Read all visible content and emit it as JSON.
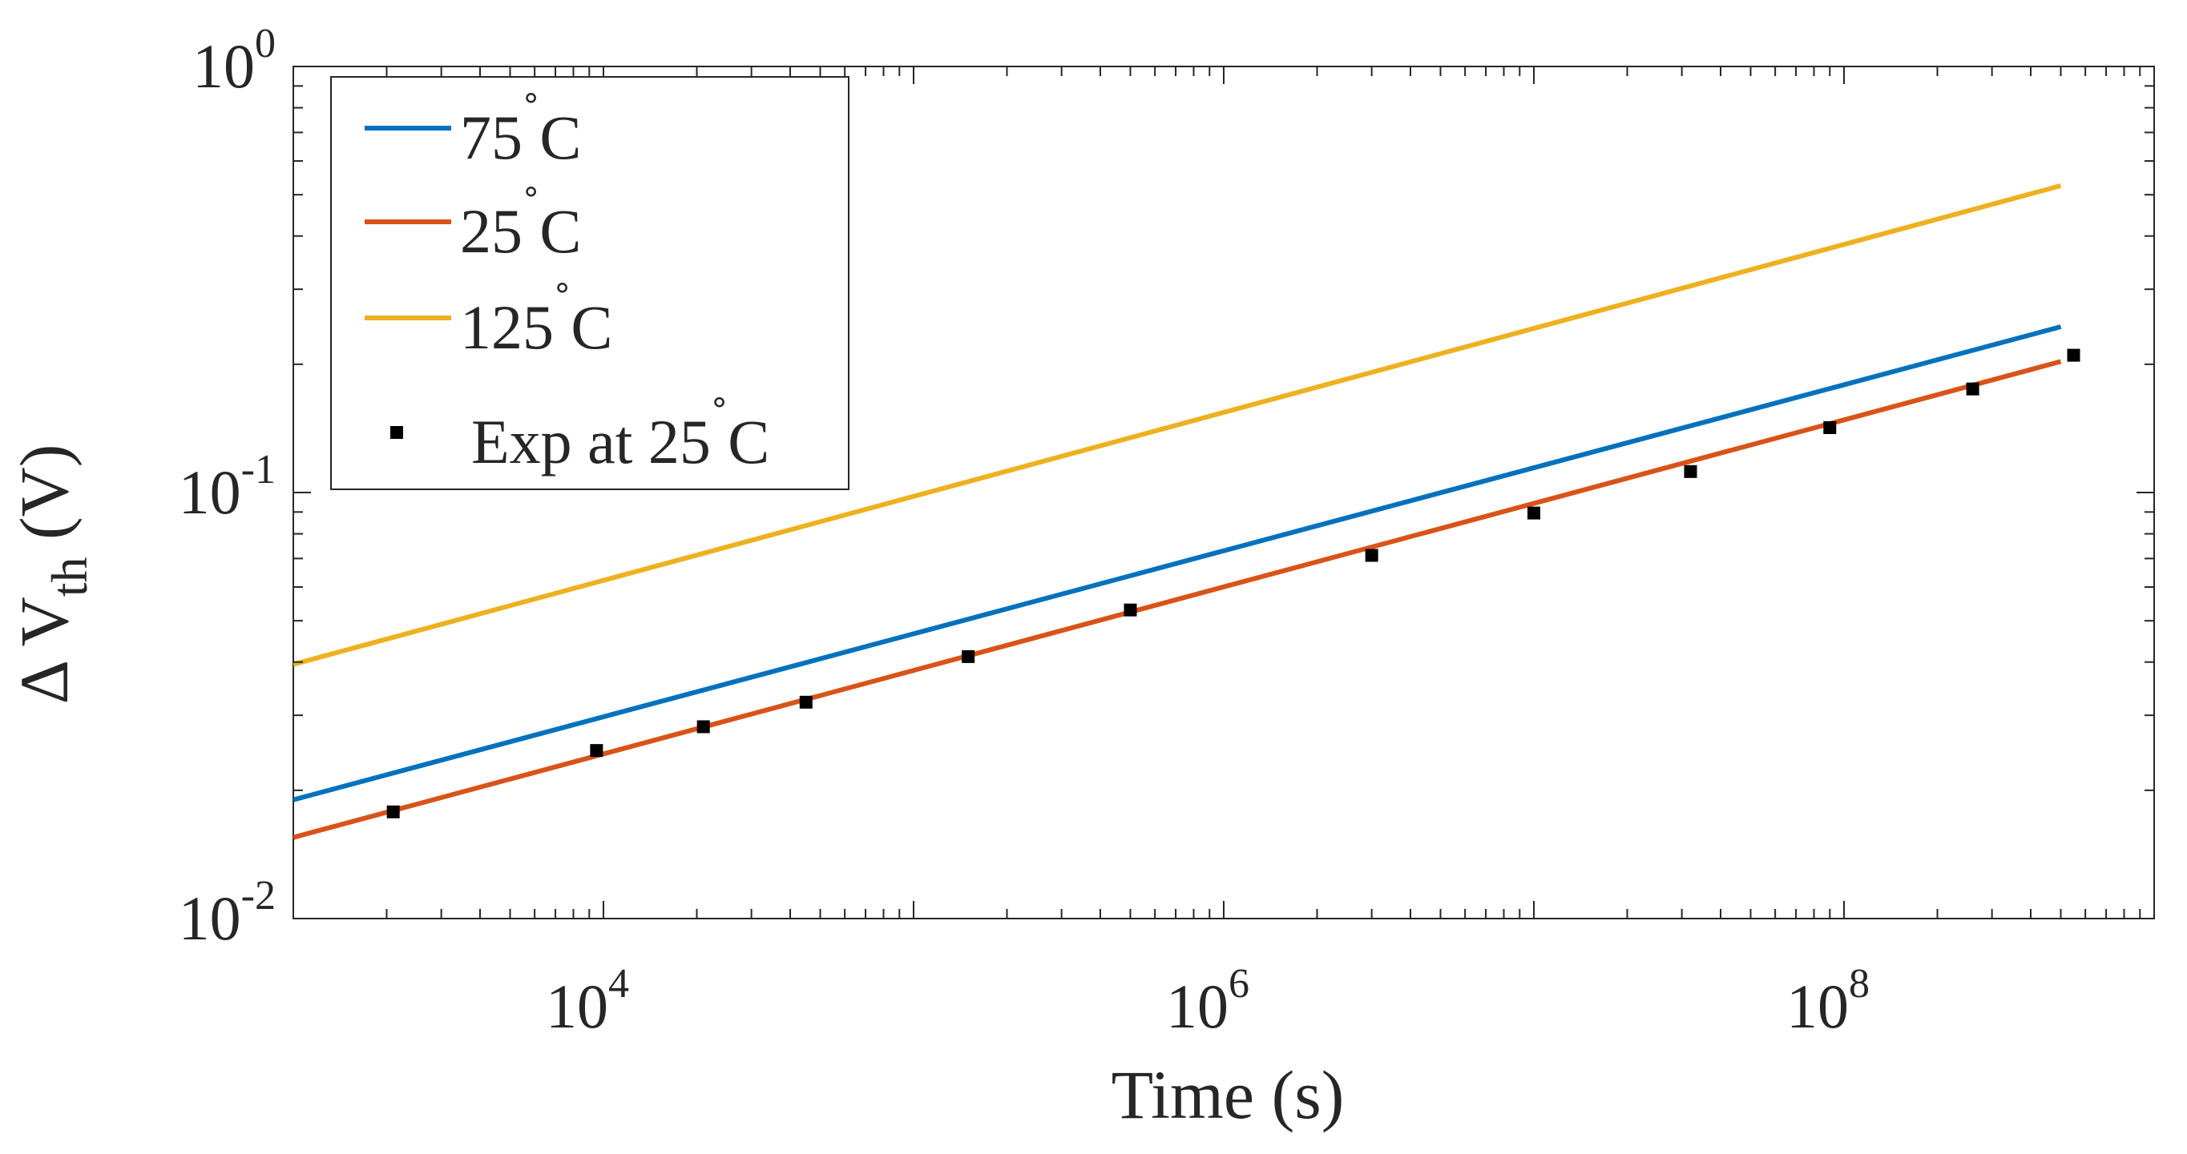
{
  "chart_data": {
    "type": "line",
    "xscale": "log",
    "yscale": "log",
    "xlim": [
      1000,
      1000000000
    ],
    "ylim": [
      0.01,
      1
    ],
    "xlabel": "Time (s)",
    "ylabel": {
      "delta": "Δ",
      "var": "V",
      "sub": "th",
      "unit": "(V)"
    },
    "x_ticks": [
      {
        "value": 10000,
        "base": "10",
        "exp": "4"
      },
      {
        "value": 1000000,
        "base": "10",
        "exp": "6"
      },
      {
        "value": 100000000,
        "base": "10",
        "exp": "8"
      }
    ],
    "y_ticks": [
      {
        "value": 0.01,
        "base": "10",
        "exp": "-2"
      },
      {
        "value": 0.1,
        "base": "10",
        "exp": "-1"
      },
      {
        "value": 1,
        "base": "10",
        "exp": "0"
      }
    ],
    "series": [
      {
        "name": "75˚C",
        "label_prefix": "75",
        "color": "#0072BD",
        "kind": "line",
        "x": [
          1000,
          500000000
        ],
        "y": [
          0.019,
          0.245
        ]
      },
      {
        "name": "25˚C",
        "label_prefix": "25",
        "color": "#D95319",
        "kind": "line",
        "x": [
          1000,
          500000000
        ],
        "y": [
          0.0155,
          0.203
        ]
      },
      {
        "name": "125˚C",
        "label_prefix": "125",
        "color": "#EDB120",
        "kind": "line",
        "x": [
          1000,
          500000000
        ],
        "y": [
          0.0395,
          0.525
        ]
      },
      {
        "name": "Exp at 25˚C",
        "label_prefix": "Exp at 25",
        "color": "#000000",
        "kind": "markers",
        "x": [
          2100,
          9500,
          21000,
          45000,
          150000,
          500000,
          3000000,
          10000000,
          32000000,
          90000000,
          260000000,
          550000000
        ],
        "y": [
          0.0178,
          0.0248,
          0.0282,
          0.0322,
          0.0412,
          0.053,
          0.0712,
          0.0895,
          0.112,
          0.142,
          0.175,
          0.21
        ]
      }
    ],
    "legend": {
      "position": "top-left",
      "degree_symbol": "˚",
      "unit_letter": "C"
    },
    "grid": false,
    "box": true
  }
}
